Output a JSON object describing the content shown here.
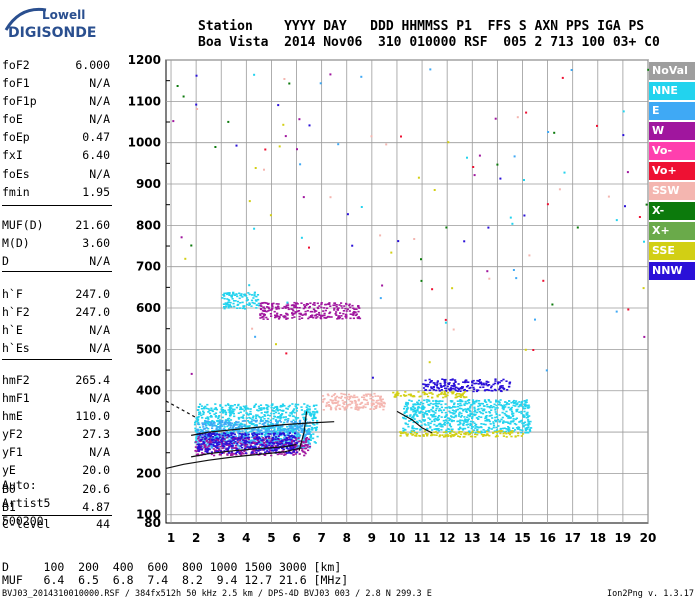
{
  "logo": {
    "top": "Lowell",
    "main": "DIGISONDE"
  },
  "header": {
    "row1": "Station    YYYY DAY   DDD HHMMSS P1  FFS S AXN PPS IGA PS",
    "row2": "Boa Vista  2014 Nov06  310 010000 RSF  005 2 713 100 03+ C0"
  },
  "params_group1": [
    {
      "label": "foF2",
      "value": "6.000"
    },
    {
      "label": "foF1",
      "value": "N/A"
    },
    {
      "label": "foF1p",
      "value": "N/A"
    },
    {
      "label": "foE",
      "value": "N/A"
    },
    {
      "label": "foEp",
      "value": "0.47"
    },
    {
      "label": "fxI",
      "value": "6.40"
    },
    {
      "label": "foEs",
      "value": "N/A"
    },
    {
      "label": "fmin",
      "value": "1.95"
    }
  ],
  "params_group2": [
    {
      "label": "MUF(D)",
      "value": "21.60"
    },
    {
      "label": "M(D)",
      "value": "3.60"
    },
    {
      "label": "D",
      "value": "N/A"
    }
  ],
  "params_group3": [
    {
      "label": "h`F",
      "value": "247.0"
    },
    {
      "label": "h`F2",
      "value": "247.0"
    },
    {
      "label": "h`E",
      "value": "N/A"
    },
    {
      "label": "h`Es",
      "value": "N/A"
    }
  ],
  "params_group4": [
    {
      "label": "hmF2",
      "value": "265.4"
    },
    {
      "label": "hmF1",
      "value": "N/A"
    },
    {
      "label": "hmE",
      "value": "110.0"
    },
    {
      "label": "yF2",
      "value": "27.3"
    },
    {
      "label": "yF1",
      "value": "N/A"
    },
    {
      "label": "yE",
      "value": "20.0"
    },
    {
      "label": "B0",
      "value": "20.6"
    },
    {
      "label": "B1",
      "value": "4.87"
    }
  ],
  "params_group5": [
    {
      "label": "C-level",
      "value": "44"
    }
  ],
  "auto": {
    "line1": "Auto:",
    "line2": "Artist5",
    "line3": "500200"
  },
  "muf_table": {
    "d_row": "D     100  200  400  600  800 1000 1500 3000 [km]",
    "muf_row": "MUF   6.4  6.5  6.8  7.4  8.2  9.4 12.7 21.6 [MHz]"
  },
  "footer": {
    "left": "BVJ03_2014310010000.RSF / 384fx512h 50 kHz 2.5 km / DPS-4D BVJ03 003 / 2.8 N 299.3 E",
    "right": "Ion2Png v. 1.3.17"
  },
  "legend": [
    {
      "label": "NoVal",
      "color": "#9e9e9e"
    },
    {
      "label": "NNE",
      "color": "#22d3ee"
    },
    {
      "label": "E",
      "color": "#3fa9f5"
    },
    {
      "label": "W",
      "color": "#a0169e"
    },
    {
      "label": "Vo-",
      "color": "#ff3fae"
    },
    {
      "label": "Vo+",
      "color": "#ee1133"
    },
    {
      "label": "SSW",
      "color": "#f4b6b0"
    },
    {
      "label": "X-",
      "color": "#0c7a0c"
    },
    {
      "label": "X+",
      "color": "#6aaa4a"
    },
    {
      "label": "SSE",
      "color": "#d2cf14"
    },
    {
      "label": "NNW",
      "color": "#2a10d8"
    }
  ],
  "chart_data": {
    "type": "scatter",
    "title": "",
    "xlabel": "",
    "ylabel": "",
    "xlim": [
      0.8,
      20
    ],
    "ylim": [
      80,
      1200
    ],
    "x_ticks": [
      "1",
      "2",
      "3",
      "4",
      "5",
      "6",
      "7",
      "8",
      "9",
      "10",
      "11",
      "12",
      "13",
      "14",
      "15",
      "16",
      "17",
      "18",
      "19",
      "20"
    ],
    "y_ticks": [
      "80",
      "100",
      "200",
      "300",
      "400",
      "500",
      "600",
      "700",
      "800",
      "900",
      "1000",
      "1100",
      "1200"
    ],
    "series": [
      {
        "name": "NNE",
        "color": "#22d3ee",
        "clusters": [
          [
            1.9,
            6.8,
            275,
            370
          ],
          [
            10.2,
            15.3,
            300,
            380
          ],
          [
            3.0,
            4.5,
            600,
            640
          ]
        ]
      },
      {
        "name": "E",
        "color": "#3fa9f5",
        "clusters": [
          [
            2.0,
            6.5,
            260,
            330
          ]
        ]
      },
      {
        "name": "W",
        "color": "#a0169e",
        "clusters": [
          [
            1.9,
            6.5,
            245,
            290
          ],
          [
            4.5,
            8.5,
            575,
            615
          ]
        ]
      },
      {
        "name": "NNW",
        "color": "#2a10d8",
        "clusters": [
          [
            2.0,
            6.0,
            250,
            300
          ],
          [
            11.0,
            14.5,
            400,
            430
          ]
        ]
      },
      {
        "name": "SSE",
        "color": "#d2cf14",
        "clusters": [
          [
            9.8,
            12.8,
            385,
            400
          ],
          [
            10.0,
            15.0,
            290,
            305
          ]
        ]
      },
      {
        "name": "SSW",
        "color": "#f4b6b0",
        "clusters": [
          [
            7.0,
            9.5,
            355,
            395
          ]
        ]
      }
    ]
  }
}
